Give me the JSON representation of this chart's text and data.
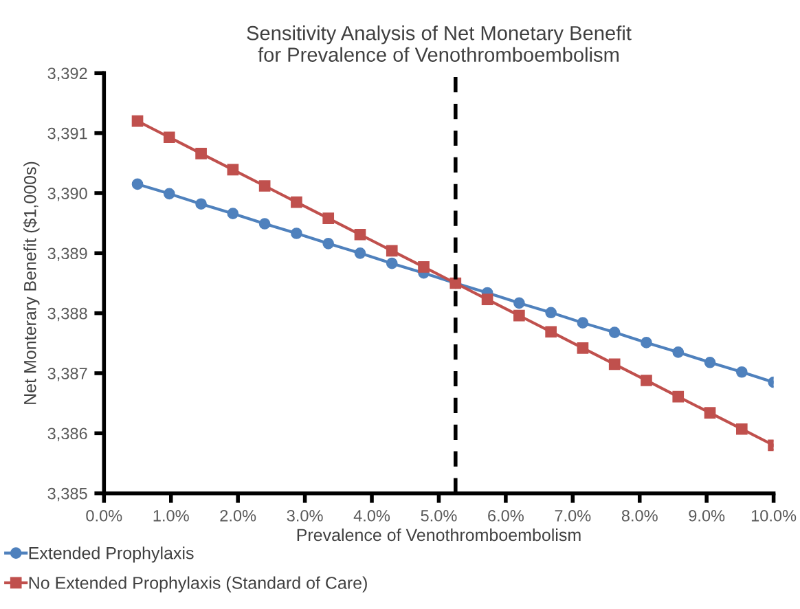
{
  "chart_data": {
    "type": "line",
    "title": "Sensitivity Analysis of Net Monetary Benefit\nfor Prevalence of Venothromboembolism",
    "xlabel": "Prevalence of Venothromboembolism",
    "ylabel": "Net Monterary Benefit ($1,000s)",
    "x": [
      0.5,
      0.975,
      1.45,
      1.925,
      2.4,
      2.875,
      3.35,
      3.825,
      4.3,
      4.775,
      5.25,
      5.725,
      6.2,
      6.675,
      7.15,
      7.625,
      8.1,
      8.575,
      9.05,
      9.525,
      10
    ],
    "series": [
      {
        "name": "Extended Prophylaxis",
        "color": "#4f81bd",
        "marker": "circle",
        "values": [
          3390.15,
          3389.99,
          3389.82,
          3389.66,
          3389.49,
          3389.33,
          3389.16,
          3389.0,
          3388.83,
          3388.67,
          3388.5,
          3388.34,
          3388.17,
          3388.01,
          3387.84,
          3387.68,
          3387.51,
          3387.35,
          3387.18,
          3387.02,
          3386.85
        ]
      },
      {
        "name": "No Extended Prophylaxis (Standard of Care)",
        "color": "#c0504d",
        "marker": "square",
        "values": [
          3391.2,
          3390.93,
          3390.66,
          3390.39,
          3390.12,
          3389.85,
          3389.58,
          3389.31,
          3389.04,
          3388.77,
          3388.5,
          3388.23,
          3387.96,
          3387.69,
          3387.42,
          3387.15,
          3386.88,
          3386.61,
          3386.34,
          3386.07,
          3385.8
        ]
      }
    ],
    "xlim": [
      0,
      10
    ],
    "xticks": [
      {
        "value": 0,
        "label": "0.0%"
      },
      {
        "value": 1,
        "label": "1.0%"
      },
      {
        "value": 2,
        "label": "2.0%"
      },
      {
        "value": 3,
        "label": "3.0%"
      },
      {
        "value": 4,
        "label": "4.0%"
      },
      {
        "value": 5,
        "label": "5.0%"
      },
      {
        "value": 6,
        "label": "6.0%"
      },
      {
        "value": 7,
        "label": "7.0%"
      },
      {
        "value": 8,
        "label": "8.0%"
      },
      {
        "value": 9,
        "label": "9.0%"
      },
      {
        "value": 10,
        "label": "10.0%"
      }
    ],
    "ylim": [
      3385,
      3392
    ],
    "yticks": [
      {
        "value": 3385,
        "label": "3,385"
      },
      {
        "value": 3386,
        "label": "3,386"
      },
      {
        "value": 3387,
        "label": "3,387"
      },
      {
        "value": 3388,
        "label": "3,388"
      },
      {
        "value": 3389,
        "label": "3,389"
      },
      {
        "value": 3390,
        "label": "3,390"
      },
      {
        "value": 3391,
        "label": "3,391"
      },
      {
        "value": 3392,
        "label": "3,392"
      }
    ],
    "ref_lines": [
      {
        "axis": "x",
        "value": 5.25,
        "color": "#000000",
        "line_style": "dashed"
      }
    ],
    "grid": false,
    "legend": "bottom",
    "line_style": "solid"
  }
}
